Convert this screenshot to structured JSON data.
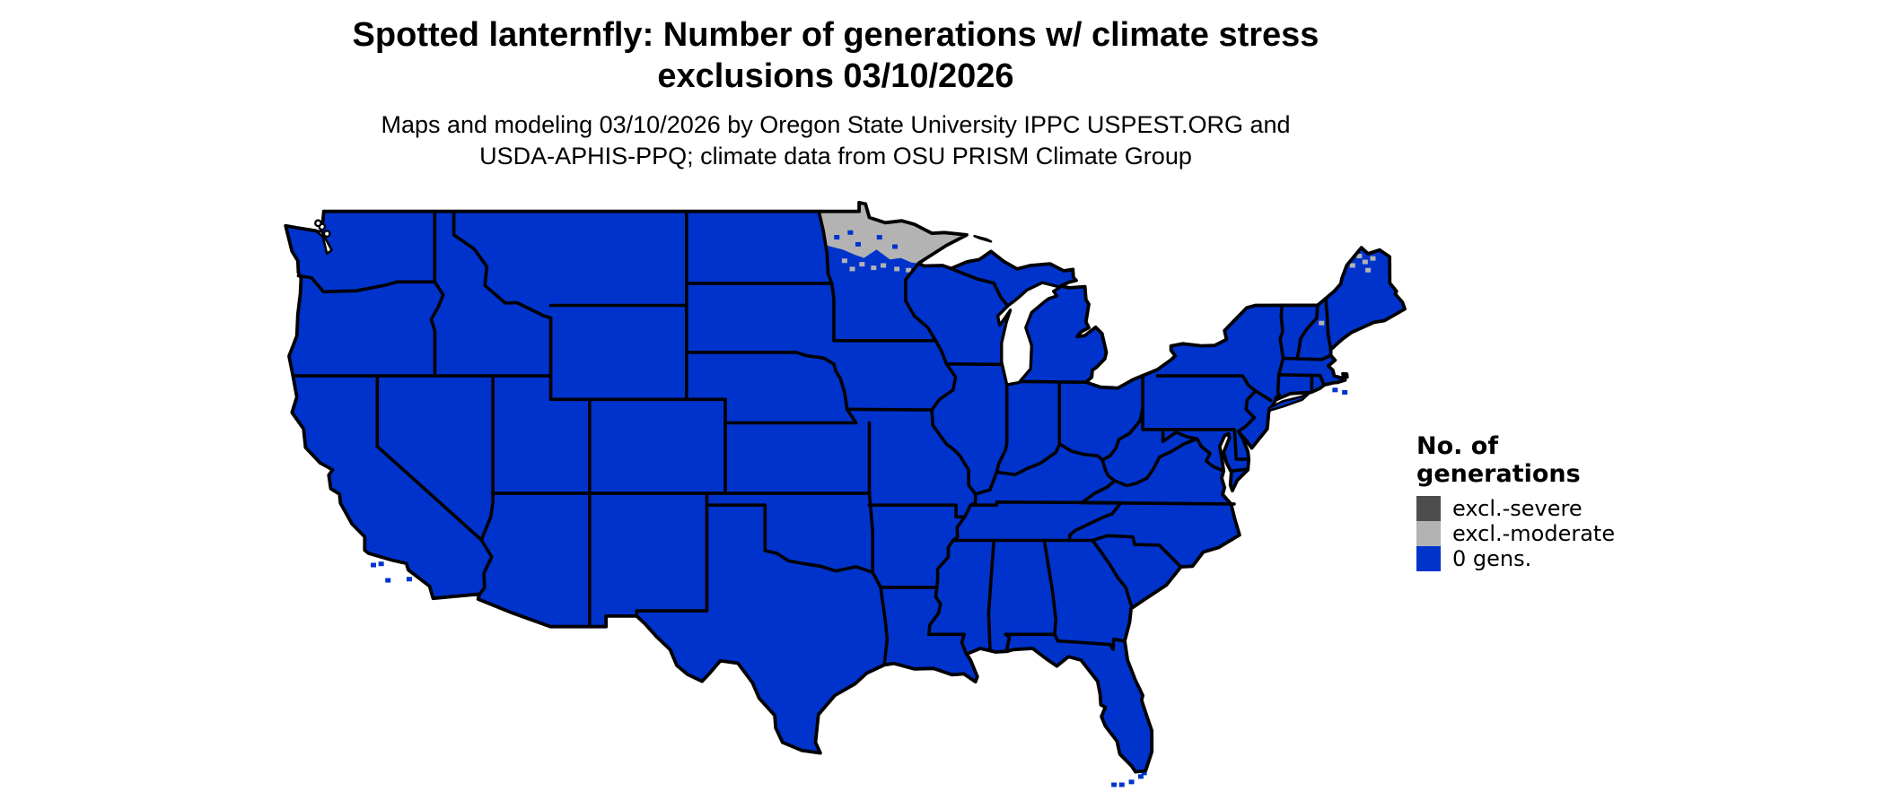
{
  "header": {
    "title_line1": "Spotted lanternfly: Number of generations w/ climate stress",
    "title_line2": "exclusions 03/10/2026",
    "subtitle_line1": "Maps and modeling 03/10/2026 by Oregon State University IPPC USPEST.ORG and",
    "subtitle_line2": "USDA-APHIS-PPQ; climate data from OSU PRISM Climate Group"
  },
  "legend": {
    "title_line1": "No. of",
    "title_line2": "generations",
    "items": [
      {
        "label": "excl.-severe",
        "color": "#4D4D4D"
      },
      {
        "label": "excl.-moderate",
        "color": "#B3B3B3"
      },
      {
        "label": "0 gens.",
        "color": "#0033CC"
      }
    ]
  },
  "map": {
    "colors": {
      "zero_generations": "#0033CC",
      "exclusion_moderate": "#B3B3B3",
      "exclusion_severe": "#4D4D4D",
      "state_border": "#000000",
      "water": "#FFFFFF"
    }
  }
}
